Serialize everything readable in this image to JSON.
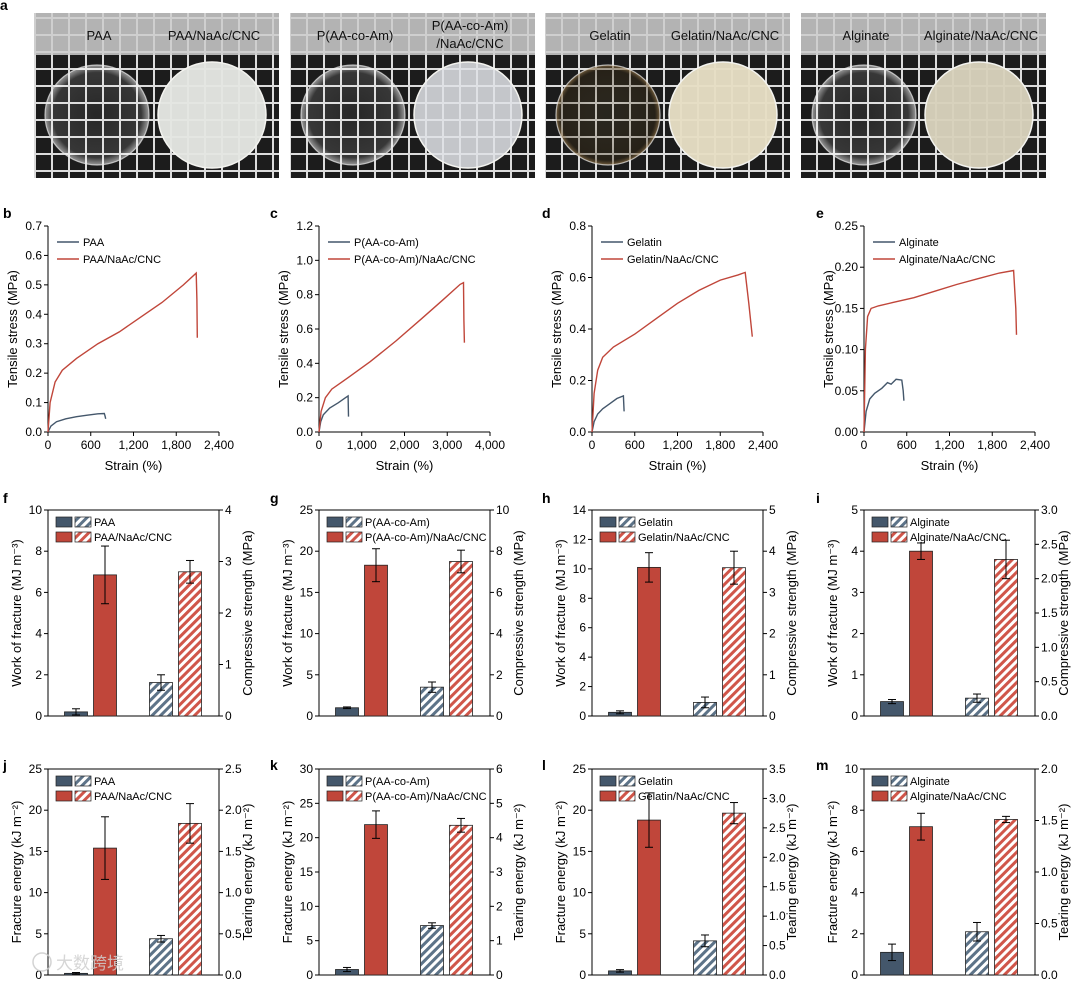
{
  "figure": {
    "panel_letters": [
      "a",
      "b",
      "c",
      "d",
      "e",
      "f",
      "g",
      "h",
      "i",
      "j",
      "k",
      "l",
      "m"
    ],
    "photo_labels": [
      {
        "left": "PAA",
        "right": "PAA/NaAc/CNC"
      },
      {
        "left": "P(AA-co-Am)",
        "right_line1": "P(AA-co-Am)",
        "right_line2": "/NaAc/CNC"
      },
      {
        "left": "Gelatin",
        "right": "Gelatin/NaAc/CNC"
      },
      {
        "left": "Alginate",
        "right": "Alginate/NaAc/CNC"
      }
    ],
    "watermark": "大数跨境"
  },
  "colors": {
    "blue": "#44576b",
    "red": "#c0463a",
    "hatch_blue": "#b9c8d6",
    "hatch_red": "#ea9a92"
  },
  "chart_data": [
    {
      "type": "line",
      "panel": "b",
      "xlabel": "Strain (%)",
      "ylabel": "Tensile stress (MPa)",
      "xlim": [
        0,
        2400
      ],
      "ylim": [
        0,
        0.7
      ],
      "xticks": [
        "0",
        "600",
        "1,200",
        "1,800",
        "2,400"
      ],
      "yticks": [
        "0.0",
        "0.1",
        "0.2",
        "0.3",
        "0.4",
        "0.5",
        "0.6",
        "0.7"
      ],
      "series": [
        {
          "name": "PAA",
          "color": "blue",
          "x": [
            0,
            40,
            120,
            250,
            400,
            550,
            700,
            790,
            800,
            810
          ],
          "y": [
            0,
            0.02,
            0.035,
            0.045,
            0.052,
            0.057,
            0.062,
            0.063,
            0.055,
            0.045
          ]
        },
        {
          "name": "PAA/NaAc/CNC",
          "color": "red",
          "x": [
            0,
            30,
            100,
            200,
            400,
            700,
            1000,
            1300,
            1600,
            1900,
            2080,
            2090,
            2095
          ],
          "y": [
            0,
            0.1,
            0.17,
            0.21,
            0.25,
            0.3,
            0.34,
            0.39,
            0.44,
            0.5,
            0.54,
            0.45,
            0.32
          ]
        }
      ]
    },
    {
      "type": "line",
      "panel": "c",
      "xlabel": "Strain (%)",
      "ylabel": "Tensile stress (MPa)",
      "xlim": [
        0,
        4000
      ],
      "ylim": [
        0,
        1.2
      ],
      "xticks": [
        "0",
        "1,000",
        "2,000",
        "3,000",
        "4,000"
      ],
      "yticks": [
        "0.0",
        "0.2",
        "0.4",
        "0.6",
        "0.8",
        "1.0",
        "1.2"
      ],
      "series": [
        {
          "name": "P(AA-co-Am)",
          "color": "blue",
          "x": [
            0,
            40,
            100,
            250,
            450,
            620,
            680,
            690
          ],
          "y": [
            0,
            0.06,
            0.1,
            0.14,
            0.17,
            0.2,
            0.21,
            0.09
          ]
        },
        {
          "name": "P(AA-co-Am)/NaAc/CNC",
          "color": "red",
          "x": [
            0,
            50,
            150,
            300,
            700,
            1200,
            1800,
            2400,
            2900,
            3300,
            3380,
            3390,
            3400
          ],
          "y": [
            0,
            0.12,
            0.2,
            0.25,
            0.32,
            0.41,
            0.53,
            0.66,
            0.77,
            0.86,
            0.87,
            0.65,
            0.52
          ]
        }
      ]
    },
    {
      "type": "line",
      "panel": "d",
      "xlabel": "Strain (%)",
      "ylabel": "Tensile stress (MPa)",
      "xlim": [
        0,
        2400
      ],
      "ylim": [
        0,
        0.8
      ],
      "xticks": [
        "0",
        "600",
        "1,200",
        "1,800",
        "2,400"
      ],
      "yticks": [
        "0.0",
        "0.2",
        "0.4",
        "0.6",
        "0.8"
      ],
      "series": [
        {
          "name": "Gelatin",
          "color": "blue",
          "x": [
            0,
            30,
            80,
            150,
            250,
            350,
            440,
            450
          ],
          "y": [
            0,
            0.04,
            0.07,
            0.09,
            0.11,
            0.13,
            0.14,
            0.08
          ]
        },
        {
          "name": "Gelatin/NaAc/CNC",
          "color": "red",
          "x": [
            0,
            30,
            80,
            150,
            300,
            600,
            900,
            1200,
            1500,
            1800,
            2050,
            2150,
            2200,
            2250
          ],
          "y": [
            0,
            0.15,
            0.24,
            0.29,
            0.33,
            0.38,
            0.44,
            0.5,
            0.55,
            0.59,
            0.61,
            0.62,
            0.5,
            0.37
          ]
        }
      ]
    },
    {
      "type": "line",
      "panel": "e",
      "xlabel": "Strain (%)",
      "ylabel": "Tensile stress (MPa)",
      "xlim": [
        0,
        2400
      ],
      "ylim": [
        0,
        0.25
      ],
      "xticks": [
        "0",
        "600",
        "1,200",
        "1,800",
        "2,400"
      ],
      "yticks": [
        "0.00",
        "0.05",
        "0.10",
        "0.15",
        "0.20",
        "0.25"
      ],
      "series": [
        {
          "name": "Alginate",
          "color": "blue",
          "x": [
            0,
            30,
            80,
            150,
            250,
            330,
            380,
            450,
            530,
            550,
            560
          ],
          "y": [
            0,
            0.025,
            0.04,
            0.047,
            0.053,
            0.06,
            0.058,
            0.064,
            0.063,
            0.05,
            0.038
          ]
        },
        {
          "name": "Alginate/NaAc/CNC",
          "color": "red",
          "x": [
            0,
            20,
            50,
            100,
            200,
            400,
            700,
            1000,
            1300,
            1600,
            1900,
            2100,
            2130,
            2140
          ],
          "y": [
            0,
            0.1,
            0.14,
            0.15,
            0.153,
            0.157,
            0.163,
            0.171,
            0.179,
            0.186,
            0.193,
            0.196,
            0.15,
            0.118
          ]
        }
      ]
    },
    {
      "type": "bar",
      "panel": "f",
      "ylabel": "Work of fracture (MJ m⁻³)",
      "ylabel2": "Compressive strength (MPa)",
      "ylim": [
        0,
        10
      ],
      "ylim2": [
        0,
        4
      ],
      "yticks": [
        "0",
        "2",
        "4",
        "6",
        "8",
        "10"
      ],
      "yticks2": [
        "0",
        "1",
        "2",
        "3",
        "4"
      ],
      "legend": [
        "PAA",
        "PAA/NaAc/CNC"
      ],
      "left_values": [
        0.2,
        6.85
      ],
      "left_errors": [
        0.15,
        1.4
      ],
      "right_values": [
        0.65,
        2.8
      ],
      "right_errors": [
        0.15,
        0.22
      ]
    },
    {
      "type": "bar",
      "panel": "g",
      "ylabel": "Work of fracture (MJ m⁻³)",
      "ylabel2": "Compressive strength (MPa)",
      "ylim": [
        0,
        25
      ],
      "ylim2": [
        0,
        10
      ],
      "yticks": [
        "0",
        "5",
        "10",
        "15",
        "20",
        "25"
      ],
      "yticks2": [
        "0",
        "2",
        "4",
        "6",
        "8",
        "10"
      ],
      "legend": [
        "P(AA-co-Am)",
        "P(AA-co-Am)/NaAc/CNC"
      ],
      "left_values": [
        1.0,
        18.3
      ],
      "left_errors": [
        0.1,
        2.0
      ],
      "right_values": [
        1.4,
        7.5
      ],
      "right_errors": [
        0.25,
        0.55
      ]
    },
    {
      "type": "bar",
      "panel": "h",
      "ylabel": "Work of fracture (MJ m⁻³)",
      "ylabel2": "Compressive strength (MPa)",
      "ylim": [
        0,
        14
      ],
      "ylim2": [
        0,
        5
      ],
      "yticks": [
        "0",
        "2",
        "4",
        "6",
        "8",
        "10",
        "12",
        "14"
      ],
      "yticks2": [
        "0",
        "1",
        "2",
        "3",
        "4",
        "5"
      ],
      "legend": [
        "Gelatin",
        "Gelatin/NaAc/CNC"
      ],
      "left_values": [
        0.25,
        10.1
      ],
      "left_errors": [
        0.1,
        1.0
      ],
      "right_values": [
        0.33,
        3.6
      ],
      "right_errors": [
        0.13,
        0.4
      ]
    },
    {
      "type": "bar",
      "panel": "i",
      "ylabel": "Work of fracture (MJ m⁻³)",
      "ylabel2": "Compressive strength (MPa)",
      "ylim": [
        0,
        5
      ],
      "ylim2": [
        0,
        3.0
      ],
      "yticks": [
        "0",
        "1",
        "2",
        "3",
        "4",
        "5"
      ],
      "yticks2": [
        "0.0",
        "0.5",
        "1.0",
        "1.5",
        "2.0",
        "2.5",
        "3.0"
      ],
      "legend": [
        "Alginate",
        "Alginate/NaAc/CNC"
      ],
      "left_values": [
        0.35,
        4.0
      ],
      "left_errors": [
        0.05,
        0.2
      ],
      "right_values": [
        0.26,
        2.28
      ],
      "right_errors": [
        0.06,
        0.28
      ]
    },
    {
      "type": "bar",
      "panel": "j",
      "ylabel": "Fracture energy (kJ m⁻²)",
      "ylabel2": "Tearing energy (kJ m⁻²)",
      "ylim": [
        0,
        25
      ],
      "ylim2": [
        0,
        2.5
      ],
      "yticks": [
        "0",
        "5",
        "10",
        "15",
        "20",
        "25"
      ],
      "yticks2": [
        "0.0",
        "0.5",
        "1.0",
        "1.5",
        "2.0",
        "2.5"
      ],
      "legend": [
        "PAA",
        "PAA/NaAc/CNC"
      ],
      "left_values": [
        0.2,
        15.4
      ],
      "left_errors": [
        0.1,
        3.8
      ],
      "right_values": [
        0.44,
        1.84
      ],
      "right_errors": [
        0.04,
        0.24
      ]
    },
    {
      "type": "bar",
      "panel": "k",
      "ylabel": "Fracture energy (kJ m⁻²)",
      "ylabel2": "Tearing energy (kJ m⁻²)",
      "ylim": [
        0,
        30
      ],
      "ylim2": [
        0,
        6
      ],
      "yticks": [
        "0",
        "5",
        "10",
        "15",
        "20",
        "25",
        "30"
      ],
      "yticks2": [
        "0",
        "1",
        "2",
        "3",
        "4",
        "5",
        "6"
      ],
      "legend": [
        "P(AA-co-Am)",
        "P(AA-co-Am)/NaAc/CNC"
      ],
      "left_values": [
        0.8,
        21.9
      ],
      "left_errors": [
        0.3,
        2.0
      ],
      "right_values": [
        1.44,
        4.36
      ],
      "right_errors": [
        0.08,
        0.2
      ]
    },
    {
      "type": "bar",
      "panel": "l",
      "ylabel": "Fracture energy (kJ m⁻²)",
      "ylabel2": "Tearing energy (kJ m⁻²)",
      "ylim": [
        0,
        25
      ],
      "ylim2": [
        0,
        3.5
      ],
      "yticks": [
        "0",
        "5",
        "10",
        "15",
        "20",
        "25"
      ],
      "yticks2": [
        "0.0",
        "0.5",
        "1.0",
        "1.5",
        "2.0",
        "2.5",
        "3.0",
        "3.5"
      ],
      "legend": [
        "Gelatin",
        "Gelatin/NaAc/CNC"
      ],
      "left_values": [
        0.5,
        18.8
      ],
      "left_errors": [
        0.15,
        3.3
      ],
      "right_values": [
        0.58,
        2.75
      ],
      "right_errors": [
        0.1,
        0.18
      ]
    },
    {
      "type": "bar",
      "panel": "m",
      "ylabel": "Fracture energy (kJ m⁻²)",
      "ylabel2": "Tearing energy (kJ m⁻²)",
      "ylim": [
        0,
        10
      ],
      "ylim2": [
        0,
        2.0
      ],
      "yticks": [
        "0",
        "2",
        "4",
        "6",
        "8",
        "10"
      ],
      "yticks2": [
        "0.0",
        "0.5",
        "1.0",
        "1.5",
        "2.0"
      ],
      "legend": [
        "Alginate",
        "Alginate/NaAc/CNC"
      ],
      "left_values": [
        1.1,
        7.2
      ],
      "left_errors": [
        0.4,
        0.65
      ],
      "right_values": [
        0.42,
        1.51
      ],
      "right_errors": [
        0.09,
        0.03
      ]
    }
  ]
}
